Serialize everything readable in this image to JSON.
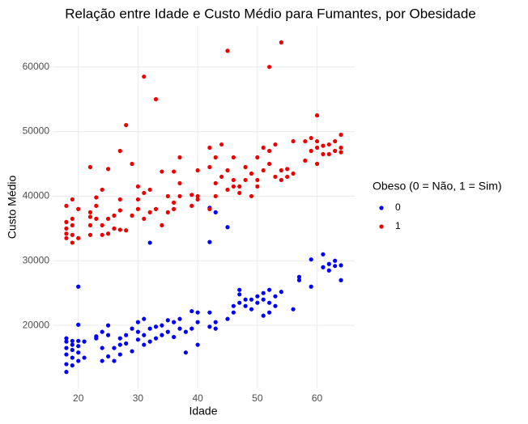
{
  "chart_data": {
    "type": "scatter",
    "title": "Relação entre Idade e Custo Médio para Fumantes, por Obesidade",
    "x_label": "Idade",
    "y_label": "Custo Médio",
    "legend_title": "Obeso (0 = Não, 1 = Sim)",
    "legend_position": "right",
    "grid": true,
    "xlim": [
      15.7,
      66.3
    ],
    "ylim": [
      10250,
      66350
    ],
    "xticks": [
      20,
      30,
      40,
      50,
      60
    ],
    "yticks": [
      20000,
      30000,
      40000,
      50000,
      60000
    ],
    "series": [
      {
        "name": "0",
        "color": "#0000ff",
        "x": [
          18,
          18,
          18,
          18,
          18,
          18,
          19,
          19,
          19,
          19,
          19,
          20,
          20,
          20,
          20,
          20,
          20,
          21,
          21,
          23,
          23,
          24,
          24,
          24,
          25,
          25,
          25,
          26,
          26,
          27,
          27,
          27,
          28,
          28,
          29,
          29,
          30,
          30,
          30,
          31,
          31,
          31,
          32,
          32,
          32,
          33,
          33,
          34,
          34,
          35,
          35,
          36,
          36,
          37,
          37,
          38,
          38,
          39,
          39,
          40,
          40,
          40,
          42,
          42,
          42,
          42,
          43,
          43,
          43,
          45,
          45,
          46,
          46,
          47,
          47,
          47,
          48,
          48,
          49,
          49,
          50,
          50,
          51,
          51,
          51,
          52,
          52,
          52,
          53,
          53,
          54,
          56,
          57,
          57,
          59,
          59,
          61,
          61,
          62,
          62,
          63,
          63,
          64,
          64
        ],
        "values": [
          12800,
          14000,
          15500,
          16500,
          17500,
          18000,
          13800,
          15000,
          16200,
          17000,
          17600,
          14500,
          15800,
          16800,
          17600,
          20100,
          26000,
          15000,
          17500,
          18000,
          18300,
          14500,
          16500,
          19000,
          15200,
          18500,
          20000,
          14500,
          16500,
          15500,
          17000,
          18000,
          17200,
          18500,
          16000,
          19500,
          17800,
          19000,
          20500,
          17000,
          18500,
          21000,
          17500,
          19500,
          32800,
          18000,
          19800,
          18500,
          20000,
          19000,
          20800,
          18200,
          20500,
          19500,
          21000,
          15800,
          19000,
          19500,
          22200,
          17000,
          20500,
          22000,
          19800,
          22000,
          32900,
          38200,
          19500,
          20500,
          37500,
          21000,
          35200,
          22000,
          23000,
          23500,
          24800,
          25500,
          23000,
          24000,
          22500,
          24000,
          23500,
          24500,
          21500,
          24000,
          25000,
          22000,
          23500,
          25500,
          23000,
          24500,
          25200,
          22500,
          27500,
          27000,
          26000,
          30200,
          29000,
          31000,
          28500,
          29500,
          29200,
          30000,
          27000,
          29300
        ]
      },
      {
        "name": "1",
        "color": "#ee0000",
        "x": [
          18,
          18,
          18,
          18,
          18,
          19,
          19,
          19,
          19,
          19,
          20,
          20,
          22,
          22,
          22,
          22,
          22,
          23,
          23,
          23,
          24,
          24,
          24,
          25,
          25,
          25,
          26,
          26,
          27,
          27,
          27,
          27,
          28,
          28,
          29,
          29,
          30,
          30,
          30,
          31,
          31,
          31,
          32,
          32,
          33,
          33,
          34,
          34,
          35,
          35,
          36,
          36,
          36,
          37,
          37,
          37,
          39,
          39,
          40,
          40,
          40,
          42,
          42,
          42,
          43,
          43,
          43,
          44,
          44,
          45,
          45,
          45,
          46,
          46,
          46,
          47,
          47,
          48,
          48,
          49,
          49,
          50,
          50,
          50,
          51,
          51,
          52,
          52,
          52,
          53,
          53,
          54,
          54,
          54,
          55,
          55,
          56,
          56,
          58,
          58,
          59,
          59,
          60,
          60,
          60,
          60,
          61,
          61,
          62,
          62,
          63,
          63,
          64,
          64,
          64
        ],
        "values": [
          33500,
          34200,
          35000,
          36000,
          38500,
          32800,
          34000,
          35500,
          36500,
          39500,
          33500,
          38000,
          34000,
          35500,
          36800,
          37500,
          44500,
          36500,
          38500,
          39800,
          34000,
          35500,
          41000,
          34200,
          36500,
          44200,
          35000,
          37000,
          34800,
          37800,
          39500,
          47000,
          51000,
          34700,
          37000,
          45000,
          38000,
          39500,
          41500,
          58500,
          36500,
          40500,
          37500,
          41000,
          55000,
          38000,
          35500,
          43800,
          37500,
          40000,
          38000,
          39000,
          43800,
          40000,
          42000,
          46000,
          38500,
          40200,
          39500,
          40000,
          44000,
          38000,
          44500,
          47500,
          40000,
          46000,
          42000,
          43000,
          48000,
          62500,
          41000,
          44000,
          41500,
          42500,
          46000,
          40500,
          41500,
          44500,
          42500,
          40000,
          43500,
          41500,
          42500,
          46000,
          44000,
          47500,
          60000,
          45000,
          47000,
          43000,
          48000,
          63800,
          42500,
          44000,
          43000,
          44200,
          43500,
          48500,
          45500,
          48500,
          47000,
          49000,
          45000,
          47500,
          48500,
          52500,
          46500,
          47800,
          46500,
          48000,
          47000,
          48500,
          46800,
          47500,
          49500
        ]
      }
    ]
  }
}
